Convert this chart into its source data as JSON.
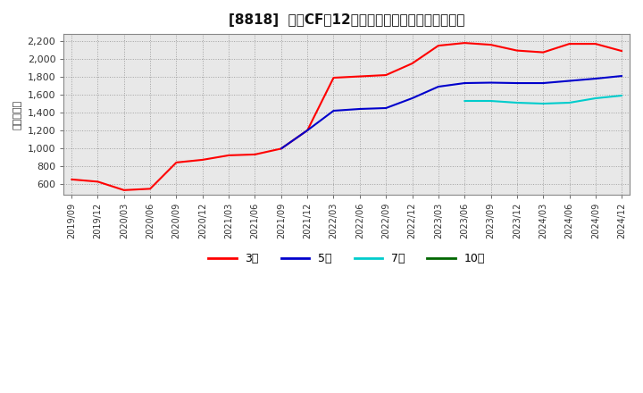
{
  "title": "[8818]  営業CFの12か月移動合計の標準偏差の推移",
  "ylabel": "（百万円）",
  "background_color": "#ffffff",
  "plot_bg_color": "#e8e8e8",
  "grid_color": "#999999",
  "ylim": [
    480,
    2280
  ],
  "yticks": [
    600,
    800,
    1000,
    1200,
    1400,
    1600,
    1800,
    2000,
    2200
  ],
  "series": {
    "3年": {
      "color": "#ff0000",
      "data": [
        [
          "2019/09",
          650
        ],
        [
          "2019/12",
          625
        ],
        [
          "2020/03",
          530
        ],
        [
          "2020/06",
          545
        ],
        [
          "2020/09",
          840
        ],
        [
          "2020/12",
          870
        ],
        [
          "2021/03",
          920
        ],
        [
          "2021/06",
          930
        ],
        [
          "2021/09",
          995
        ],
        [
          "2021/12",
          1200
        ],
        [
          "2022/03",
          1790
        ],
        [
          "2022/06",
          1805
        ],
        [
          "2022/09",
          1820
        ],
        [
          "2022/12",
          1950
        ],
        [
          "2023/03",
          2150
        ],
        [
          "2023/06",
          2180
        ],
        [
          "2023/09",
          2160
        ],
        [
          "2023/12",
          2095
        ],
        [
          "2024/03",
          2075
        ],
        [
          "2024/06",
          2170
        ],
        [
          "2024/09",
          2170
        ],
        [
          "2024/12",
          2090
        ]
      ]
    },
    "5年": {
      "color": "#0000cc",
      "data": [
        [
          "2021/09",
          995
        ],
        [
          "2021/12",
          1200
        ],
        [
          "2022/03",
          1420
        ],
        [
          "2022/06",
          1440
        ],
        [
          "2022/09",
          1450
        ],
        [
          "2022/12",
          1560
        ],
        [
          "2023/03",
          1690
        ],
        [
          "2023/06",
          1730
        ],
        [
          "2023/09",
          1735
        ],
        [
          "2023/12",
          1730
        ],
        [
          "2024/03",
          1730
        ],
        [
          "2024/06",
          1755
        ],
        [
          "2024/09",
          1780
        ],
        [
          "2024/12",
          1810
        ]
      ]
    },
    "7年": {
      "color": "#00cccc",
      "data": [
        [
          "2023/06",
          1530
        ],
        [
          "2023/09",
          1530
        ],
        [
          "2023/12",
          1510
        ],
        [
          "2024/03",
          1500
        ],
        [
          "2024/06",
          1510
        ],
        [
          "2024/09",
          1560
        ],
        [
          "2024/12",
          1590
        ]
      ]
    },
    "10年": {
      "color": "#006600",
      "data": []
    }
  },
  "xticklabels": [
    "2019/09",
    "2019/12",
    "2020/03",
    "2020/06",
    "2020/09",
    "2020/12",
    "2021/03",
    "2021/06",
    "2021/09",
    "2021/12",
    "2022/03",
    "2022/06",
    "2022/09",
    "2022/12",
    "2023/03",
    "2023/06",
    "2023/09",
    "2023/12",
    "2024/03",
    "2024/06",
    "2024/09",
    "2024/12"
  ],
  "legend_labels": [
    "3年",
    "5年",
    "7年",
    "10年"
  ],
  "legend_colors": [
    "#ff0000",
    "#0000cc",
    "#00cccc",
    "#006600"
  ]
}
